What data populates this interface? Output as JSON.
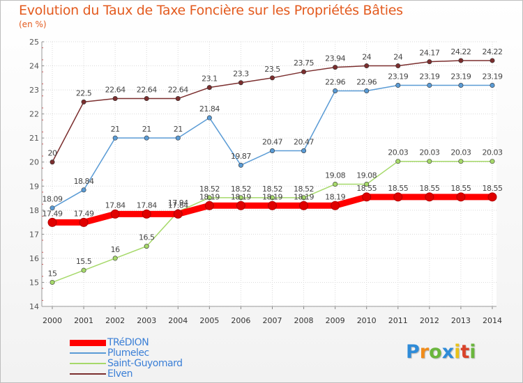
{
  "chart_data": {
    "type": "line",
    "title": "Evolution du Taux de Taxe Foncière sur les Propriétés Bâties",
    "subtitle": "(en %)",
    "x": [
      "2000",
      "2001",
      "2002",
      "2003",
      "2004",
      "2005",
      "2006",
      "2007",
      "2008",
      "2009",
      "2010",
      "2011",
      "2012",
      "2013",
      "2014"
    ],
    "ylim": [
      14,
      25
    ],
    "yticks": [
      14,
      15,
      16,
      17,
      18,
      19,
      20,
      21,
      22,
      23,
      24,
      25
    ],
    "grid": true,
    "legend_position": "bottom-left",
    "series": [
      {
        "name": "TRéDION",
        "color": "#ff0000",
        "values": [
          17.49,
          17.49,
          17.84,
          17.84,
          17.84,
          18.19,
          18.19,
          18.19,
          18.19,
          18.19,
          18.55,
          18.55,
          18.55,
          18.55,
          18.55
        ],
        "labels": [
          "17.49",
          "17.49",
          "17.84",
          "17.84",
          "17.84",
          "18.19",
          "18.19",
          "18.19",
          "18.19",
          "18.19",
          "18.55",
          "18.55",
          "18.55",
          "18.55",
          "18.55"
        ]
      },
      {
        "name": "Plumelec",
        "color": "#5a9bd5",
        "values": [
          18.09,
          18.84,
          21,
          21,
          21,
          21.84,
          19.87,
          20.47,
          20.47,
          22.96,
          22.96,
          23.19,
          23.19,
          23.19,
          23.19
        ],
        "labels": [
          "18.09",
          "18.84",
          "21",
          "21",
          "21",
          "21.84",
          "19.87",
          "20.47",
          "20.47",
          "22.96",
          "22.96",
          "23.19",
          "23.19",
          "23.19",
          "23.19"
        ]
      },
      {
        "name": "Saint-Guyomard",
        "color": "#a6d96a",
        "values": [
          15,
          15.5,
          16,
          16.5,
          17.94,
          18.52,
          18.52,
          18.52,
          18.52,
          19.08,
          19.08,
          20.03,
          20.03,
          20.03,
          20.03
        ],
        "labels": [
          "15",
          "15.5",
          "16",
          "16.5",
          "17.94",
          "18.52",
          "18.52",
          "18.52",
          "18.52",
          "19.08",
          "19.08",
          "20.03",
          "20.03",
          "20.03",
          "20.03"
        ]
      },
      {
        "name": "Elven",
        "color": "#7b2e2e",
        "values": [
          20,
          22.5,
          22.64,
          22.64,
          22.64,
          23.1,
          23.3,
          23.5,
          23.75,
          23.94,
          24,
          24,
          24.17,
          24.22,
          24.22
        ],
        "labels": [
          "20",
          "22.5",
          "22.64",
          "22.64",
          "22.64",
          "23.1",
          "23.3",
          "23.5",
          "23.75",
          "23.94",
          "24",
          "24",
          "24.17",
          "24.22",
          "24.22"
        ]
      }
    ]
  },
  "branding": {
    "logo_text": "Proxiti",
    "letters": [
      "P",
      "r",
      "o",
      "x",
      "i",
      "t",
      "i"
    ],
    "letter_colors": [
      "#2e8bd8",
      "#f08c1b",
      "#6ab63d",
      "#2e8bd8",
      "#e8c21a",
      "#d9432a",
      "#6ab63d"
    ]
  }
}
